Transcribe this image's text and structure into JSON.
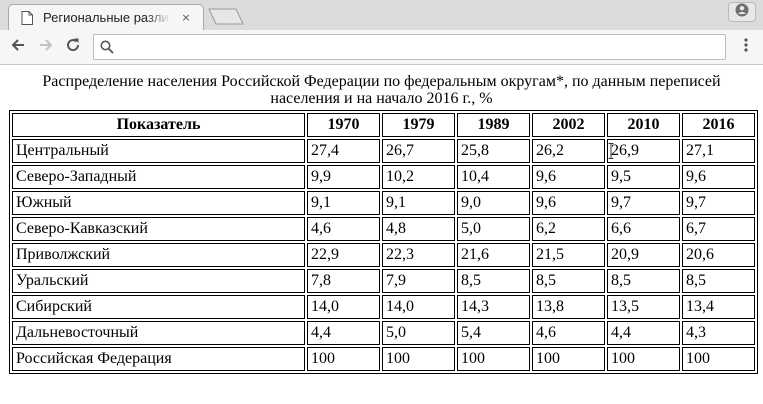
{
  "browser": {
    "tab_title": "Региональные разли",
    "tab_close": "×",
    "address_value": "",
    "icons": {
      "favicon": "document-icon",
      "close": "close-icon",
      "back": "back-arrow-icon",
      "forward": "forward-arrow-icon",
      "reload": "reload-icon",
      "search": "search-icon",
      "menu": "kebab-menu-icon",
      "profile": "profile-icon"
    }
  },
  "page": {
    "caption": "Распределение населения Российской Федерации по федеральным округам*, по данным переписей населения и на начало 2016 г., %",
    "table": {
      "headers": [
        "Показатель",
        "1970",
        "1979",
        "1989",
        "2002",
        "2010",
        "2016"
      ],
      "rows": [
        [
          "Центральный",
          "27,4",
          "26,7",
          "25,8",
          "26,2",
          "26,9",
          "27,1"
        ],
        [
          "Северо-Западный",
          "9,9",
          "10,2",
          "10,4",
          "9,6",
          "9,5",
          "9,6"
        ],
        [
          "Южный",
          "9,1",
          "9,1",
          "9,0",
          "9,6",
          "9,7",
          "9,7"
        ],
        [
          "Северо-Кавказский",
          "4,6",
          "4,8",
          "5,0",
          "6,2",
          "6,6",
          "6,7"
        ],
        [
          "Приволжский",
          "22,9",
          "22,3",
          "21,6",
          "21,5",
          "20,9",
          "20,6"
        ],
        [
          "Уральский",
          "7,8",
          "7,9",
          "8,5",
          "8,5",
          "8,5",
          "8,5"
        ],
        [
          "Сибирский",
          "14,0",
          "14,0",
          "14,3",
          "13,8",
          "13,5",
          "13,4"
        ],
        [
          "Дальневосточный",
          "4,4",
          "5,0",
          "5,4",
          "4,6",
          "4,4",
          "4,3"
        ],
        [
          "Российская Федерация",
          "100",
          "100",
          "100",
          "100",
          "100",
          "100"
        ]
      ]
    }
  }
}
